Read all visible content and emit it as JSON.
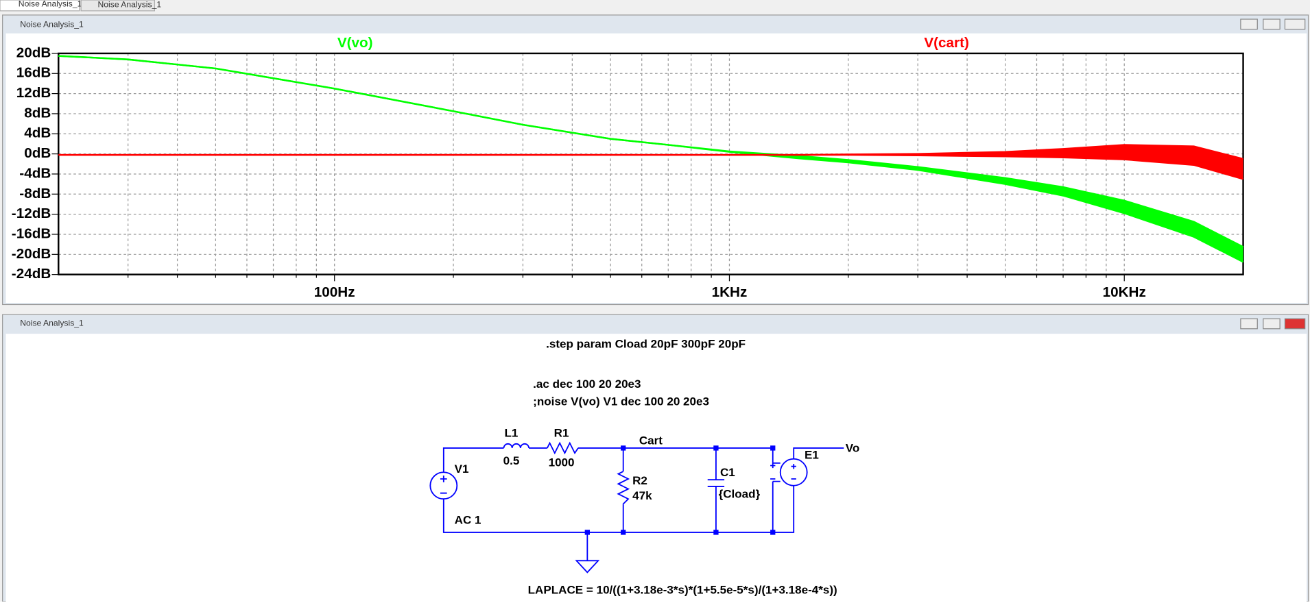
{
  "tabs": [
    "Noise Analysis_1",
    "Noise Analysis_1"
  ],
  "windows": [
    {
      "title": "Noise Analysis_1"
    },
    {
      "title": "Noise Analysis_1"
    }
  ],
  "chart_data": {
    "type": "line",
    "xscale": "log",
    "grid": true,
    "x": [
      20,
      30,
      50,
      100,
      200,
      300,
      500,
      700,
      1000,
      1500,
      2000,
      3000,
      5000,
      7000,
      10000,
      15000,
      20000
    ],
    "series": [
      {
        "name": "V(vo)",
        "color": "#00ff00",
        "traces": [
          [
            19.5,
            18.8,
            17,
            13,
            8.5,
            5.8,
            3,
            1.8,
            0.5,
            -0.4,
            -1.2,
            -2.6,
            -4.8,
            -6.6,
            -9.3,
            -13.5,
            -18.5
          ],
          [
            19.5,
            18.8,
            17,
            13,
            8.5,
            5.8,
            3,
            1.8,
            0.4,
            -0.9,
            -1.7,
            -3.2,
            -6,
            -8.3,
            -11.8,
            -16.5,
            -21.5
          ]
        ]
      },
      {
        "name": "V(cart)",
        "color": "#ff0000",
        "traces": [
          [
            -0.2,
            -0.2,
            -0.2,
            -0.2,
            -0.2,
            -0.2,
            -0.2,
            -0.2,
            -0.2,
            -0.2,
            -0.1,
            0,
            0.4,
            1,
            1.8,
            1.5,
            -1
          ],
          [
            -0.2,
            -0.2,
            -0.2,
            -0.2,
            -0.2,
            -0.2,
            -0.2,
            -0.2,
            -0.2,
            -0.2,
            -0.2,
            -0.3,
            -0.5,
            -0.7,
            -1.1,
            -2.2,
            -5
          ]
        ]
      }
    ],
    "xlim": [
      20,
      20000
    ],
    "xticks": [
      {
        "value": 100,
        "label": "100Hz"
      },
      {
        "value": 1000,
        "label": "1KHz"
      },
      {
        "value": 10000,
        "label": "10KHz"
      }
    ],
    "xgrid": [
      30,
      40,
      50,
      60,
      70,
      80,
      90,
      200,
      300,
      400,
      500,
      600,
      700,
      800,
      900,
      2000,
      3000,
      4000,
      5000,
      6000,
      7000,
      8000,
      9000
    ],
    "ylim": [
      -24,
      20
    ],
    "yticks": [
      {
        "value": -24,
        "label": "-24dB"
      },
      {
        "value": -20,
        "label": "-20dB"
      },
      {
        "value": -16,
        "label": "-16dB"
      },
      {
        "value": -12,
        "label": "-12dB"
      },
      {
        "value": -8,
        "label": "-8dB"
      },
      {
        "value": -4,
        "label": "-4dB"
      },
      {
        "value": 0,
        "label": "0dB"
      },
      {
        "value": 4,
        "label": "4dB"
      },
      {
        "value": 8,
        "label": "8dB"
      },
      {
        "value": 12,
        "label": "12dB"
      },
      {
        "value": 16,
        "label": "16dB"
      },
      {
        "value": 20,
        "label": "20dB"
      }
    ]
  },
  "schematic": {
    "directives": [
      ".step param Cload 20pF 300pF 20pF",
      ".ac dec 100 20 20e3",
      ";noise V(vo) V1 dec 100 20 20e3"
    ],
    "L1": {
      "name": "L1",
      "value": "0.5"
    },
    "R1": {
      "name": "R1",
      "value": "1000"
    },
    "R2": {
      "name": "R2",
      "value": "47k"
    },
    "C1": {
      "name": "C1",
      "value": "{Cload}"
    },
    "V1": {
      "name": "V1",
      "value": "AC 1"
    },
    "E1": {
      "name": "E1"
    },
    "nets": [
      "Cart",
      "Vo"
    ],
    "laplace": "LAPLACE = 10/((1+3.18e-3*s)*(1+5.5e-5*s)/(1+3.18e-4*s))"
  }
}
